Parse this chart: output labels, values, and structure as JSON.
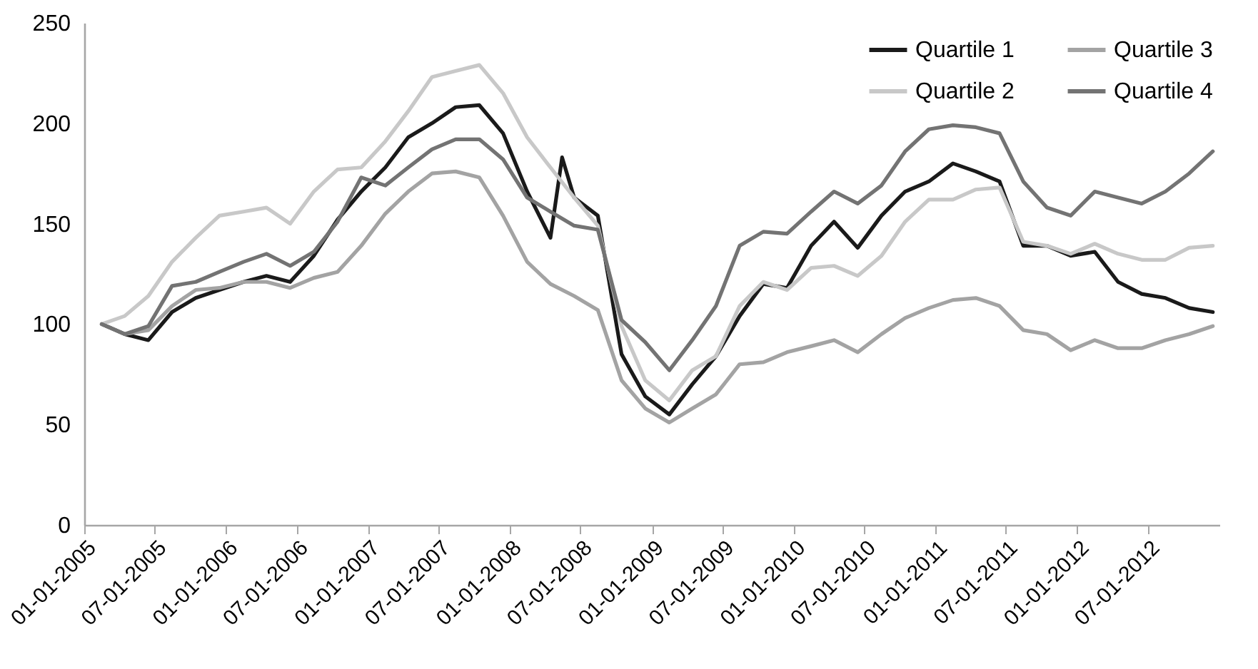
{
  "chart_data": {
    "type": "line",
    "x": [
      "2005-02-15",
      "2005-04-15",
      "2005-06-15",
      "2005-08-15",
      "2005-10-15",
      "2005-12-15",
      "2006-02-15",
      "2006-04-15",
      "2006-06-15",
      "2006-08-15",
      "2006-10-15",
      "2006-12-15",
      "2007-02-15",
      "2007-04-15",
      "2007-06-15",
      "2007-08-15",
      "2007-10-15",
      "2007-12-15",
      "2008-02-15",
      "2008-04-15",
      "2008-06-15",
      "2008-08-15",
      "2008-10-15",
      "2008-12-15",
      "2009-02-15",
      "2009-04-15",
      "2009-06-15",
      "2009-08-15",
      "2009-10-15",
      "2009-12-15",
      "2010-02-15",
      "2010-04-15",
      "2010-06-15",
      "2010-08-15",
      "2010-10-15",
      "2010-12-15",
      "2011-02-15",
      "2011-04-15",
      "2011-06-15",
      "2011-08-15",
      "2011-10-15",
      "2011-12-15",
      "2012-02-15",
      "2012-04-15",
      "2012-06-15",
      "2012-08-15",
      "2012-10-15",
      "2012-12-15"
    ],
    "series": [
      {
        "name": "Quartile 1",
        "color": "#1a1a1a",
        "x": [
          "2005-02-15",
          "2005-04-15",
          "2005-06-15",
          "2005-08-15",
          "2005-10-15",
          "2005-12-15",
          "2006-02-15",
          "2006-04-15",
          "2006-06-15",
          "2006-08-15",
          "2006-10-15",
          "2006-12-15",
          "2007-02-15",
          "2007-04-15",
          "2007-06-15",
          "2007-08-15",
          "2007-10-15",
          "2007-12-15",
          "2008-02-15",
          "2008-04-15",
          "2008-05-15",
          "2008-06-15",
          "2008-08-15",
          "2008-10-15",
          "2008-12-15",
          "2009-02-15",
          "2009-04-15",
          "2009-06-15",
          "2009-08-15",
          "2009-10-15",
          "2009-12-15",
          "2010-02-15",
          "2010-04-15",
          "2010-06-15",
          "2010-08-15",
          "2010-10-15",
          "2010-12-15",
          "2011-02-15",
          "2011-04-15",
          "2011-06-15",
          "2011-08-15",
          "2011-10-15",
          "2011-12-15",
          "2012-02-15",
          "2012-04-15",
          "2012-06-15",
          "2012-08-15",
          "2012-10-15",
          "2012-12-15"
        ],
        "values": [
          100,
          95,
          92,
          106,
          113,
          117,
          121,
          124,
          121,
          134,
          152,
          166,
          178,
          193,
          200,
          208,
          209,
          195,
          166,
          143,
          183,
          163,
          154,
          85,
          64,
          55,
          70,
          84,
          104,
          120,
          118,
          139,
          151,
          138,
          154,
          166,
          171,
          180,
          176,
          171,
          139,
          139,
          134,
          136,
          121,
          115,
          113,
          108,
          106
        ]
      },
      {
        "name": "Quartile 2",
        "color": "#c8c8c8",
        "values": [
          100,
          104,
          114,
          131,
          143,
          154,
          156,
          158,
          150,
          166,
          177,
          178,
          191,
          206,
          223,
          226,
          229,
          215,
          193,
          178,
          163,
          149,
          99,
          72,
          62,
          77,
          84,
          109,
          121,
          117,
          128,
          129,
          124,
          134,
          151,
          162,
          162,
          167,
          168,
          141,
          139,
          135,
          140,
          135,
          132,
          132,
          138,
          139
        ]
      },
      {
        "name": "Quartile 3",
        "color": "#a3a3a3",
        "values": [
          100,
          95,
          97,
          109,
          117,
          118,
          121,
          121,
          118,
          123,
          126,
          139,
          155,
          166,
          175,
          176,
          173,
          154,
          131,
          120,
          114,
          107,
          72,
          58,
          51,
          58,
          65,
          80,
          81,
          86,
          89,
          92,
          86,
          95,
          103,
          108,
          112,
          113,
          109,
          97,
          95,
          87,
          92,
          88,
          88,
          92,
          95,
          99
        ]
      },
      {
        "name": "Quartile 4",
        "color": "#737373",
        "values": [
          100,
          95,
          99,
          119,
          121,
          126,
          131,
          135,
          129,
          136,
          151,
          173,
          169,
          178,
          187,
          192,
          192,
          182,
          163,
          156,
          149,
          147,
          102,
          91,
          77,
          92,
          109,
          139,
          146,
          145,
          156,
          166,
          160,
          169,
          186,
          197,
          199,
          198,
          195,
          171,
          158,
          154,
          166,
          163,
          160,
          166,
          175,
          186
        ]
      }
    ],
    "xlim": [
      "2005-01-01",
      "2013-01-01"
    ],
    "xticks": [
      {
        "value": "2005-01-01",
        "label": "01-01-2005"
      },
      {
        "value": "2005-07-01",
        "label": "07-01-2005"
      },
      {
        "value": "2006-01-01",
        "label": "01-01-2006"
      },
      {
        "value": "2006-07-01",
        "label": "07-01-2006"
      },
      {
        "value": "2007-01-01",
        "label": "01-01-2007"
      },
      {
        "value": "2007-07-01",
        "label": "07-01-2007"
      },
      {
        "value": "2008-01-01",
        "label": "01-01-2008"
      },
      {
        "value": "2008-07-01",
        "label": "07-01-2008"
      },
      {
        "value": "2009-01-01",
        "label": "01-01-2009"
      },
      {
        "value": "2009-07-01",
        "label": "07-01-2009"
      },
      {
        "value": "2010-01-01",
        "label": "01-01-2010"
      },
      {
        "value": "2010-07-01",
        "label": "07-01-2010"
      },
      {
        "value": "2011-01-01",
        "label": "01-01-2011"
      },
      {
        "value": "2011-07-01",
        "label": "07-01-2011"
      },
      {
        "value": "2012-01-01",
        "label": "01-01-2012"
      },
      {
        "value": "2012-07-01",
        "label": "07-01-2012"
      }
    ],
    "ylim": [
      0,
      250
    ],
    "yticks": [
      0,
      50,
      100,
      150,
      200,
      250
    ],
    "grid": false,
    "legend": "top right",
    "line_style": "solid"
  }
}
